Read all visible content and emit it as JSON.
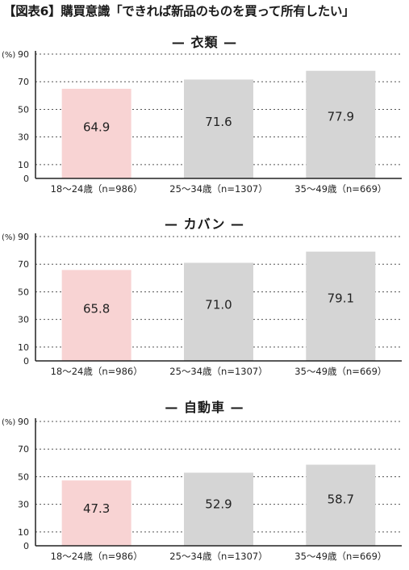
{
  "figure_title": "【図表6】購買意識「できれば新品のものを買って所有したい」",
  "colors": {
    "highlight": "#f8d3d3",
    "default": "#d5d5d5",
    "grid": "#555555",
    "axis": "#222222"
  },
  "chart_data": [
    {
      "type": "bar",
      "title": "— 衣類 —",
      "ylabel": "(%)",
      "ylim": [
        0,
        90
      ],
      "yticks": [
        0,
        10,
        30,
        50,
        70,
        90
      ],
      "grid": true,
      "categories": [
        "18〜24歳（n=986）",
        "25〜34歳（n=1307）",
        "35〜49歳（n=669）"
      ],
      "values": [
        64.9,
        71.6,
        77.9
      ],
      "value_labels": [
        "64.9",
        "71.6",
        "77.9"
      ],
      "highlight_index": 0
    },
    {
      "type": "bar",
      "title": "— カバン —",
      "ylabel": "(%)",
      "ylim": [
        0,
        90
      ],
      "yticks": [
        0,
        10,
        30,
        50,
        70,
        90
      ],
      "grid": true,
      "categories": [
        "18〜24歳（n=986）",
        "25〜34歳（n=1307）",
        "35〜49歳（n=669）"
      ],
      "values": [
        65.8,
        71.0,
        79.1
      ],
      "value_labels": [
        "65.8",
        "71.0",
        "79.1"
      ],
      "highlight_index": 0
    },
    {
      "type": "bar",
      "title": "— 自動車 —",
      "ylabel": "(%)",
      "ylim": [
        0,
        90
      ],
      "yticks": [
        0,
        10,
        30,
        50,
        70,
        90
      ],
      "grid": true,
      "categories": [
        "18〜24歳（n=986）",
        "25〜34歳（n=1307）",
        "35〜49歳（n=669）"
      ],
      "values": [
        47.3,
        52.9,
        58.7
      ],
      "value_labels": [
        "47.3",
        "52.9",
        "58.7"
      ],
      "highlight_index": 0
    }
  ]
}
